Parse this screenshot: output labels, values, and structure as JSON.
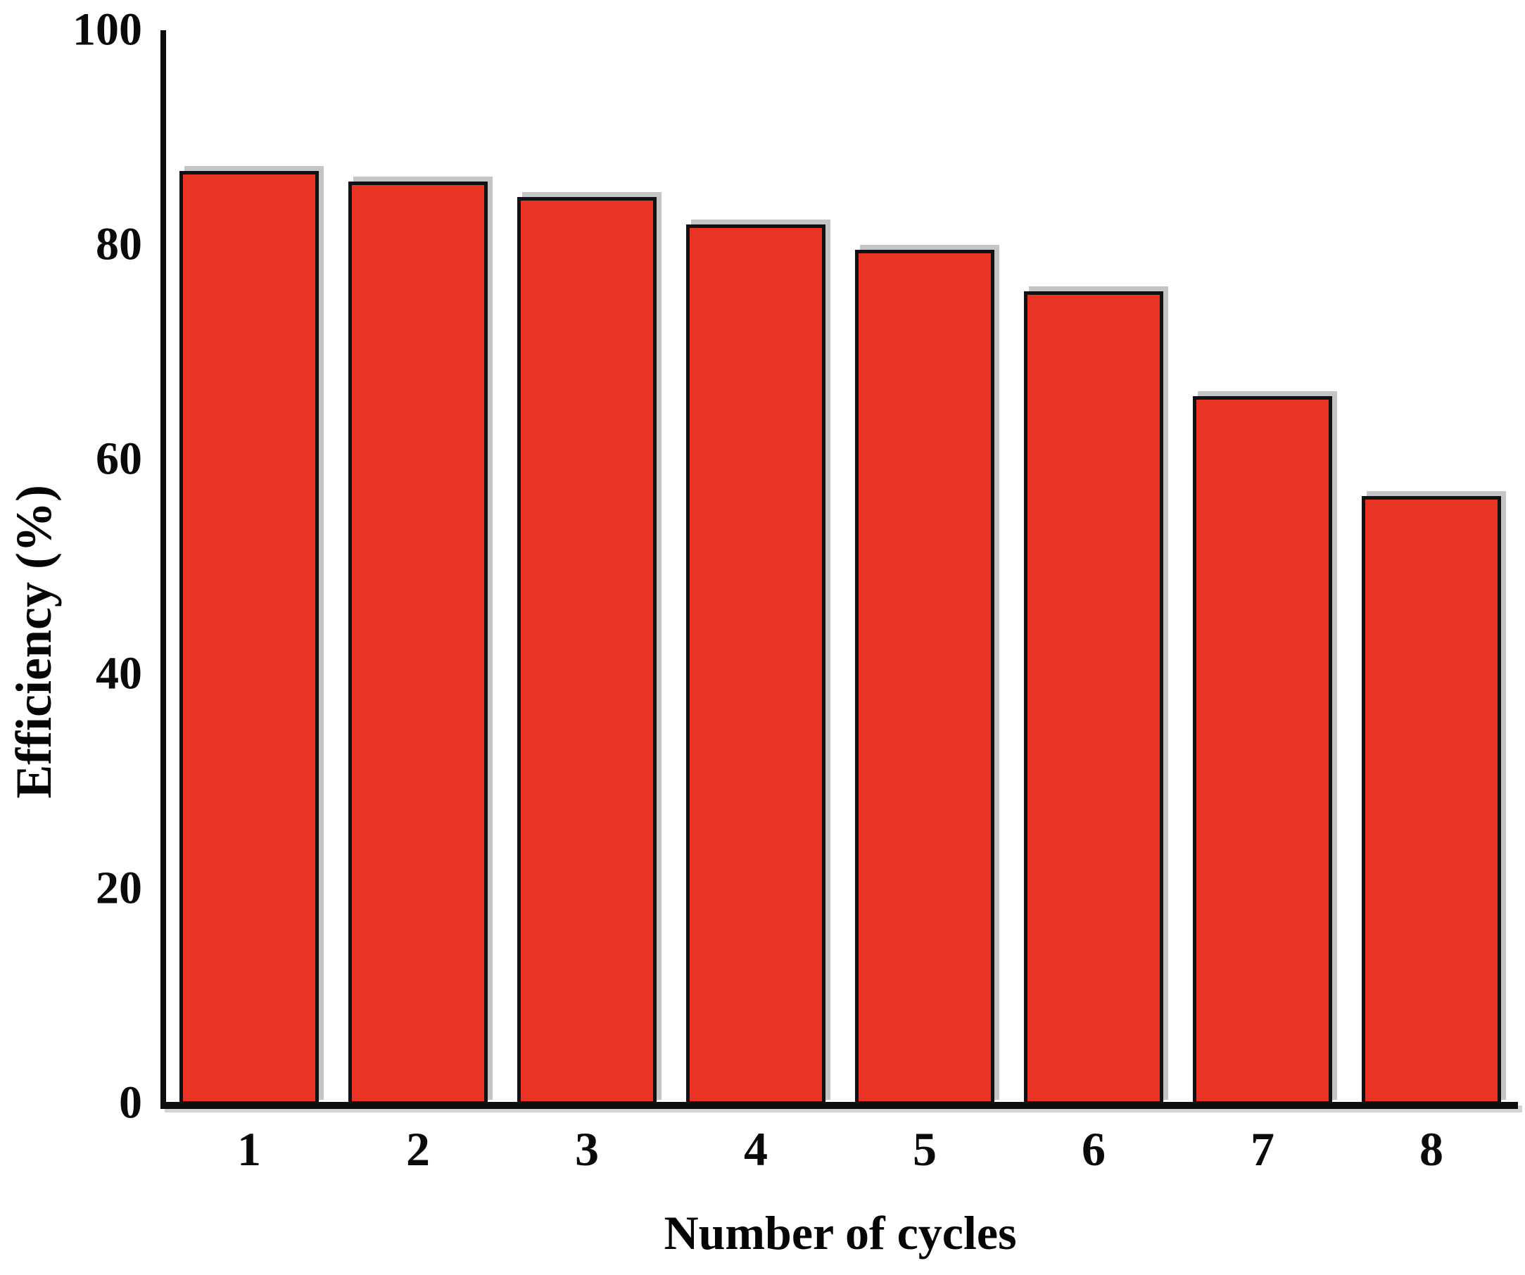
{
  "chart_data": {
    "type": "bar",
    "categories": [
      "1",
      "2",
      "3",
      "4",
      "5",
      "6",
      "7",
      "8"
    ],
    "values": [
      87,
      86,
      84.6,
      82,
      79.7,
      75.8,
      66,
      56.7
    ],
    "title": "",
    "xlabel": "Number of cycles",
    "ylabel": "Efficiency (%)",
    "ylim": [
      0,
      100
    ],
    "yticks": [
      0,
      20,
      40,
      60,
      80,
      100
    ],
    "grid": false,
    "legend": null,
    "bar_fill_color": "#E93323",
    "bar_border_color": "#111111",
    "axis_color": "#0d0d0d",
    "text_color": "#0a0a0a"
  }
}
